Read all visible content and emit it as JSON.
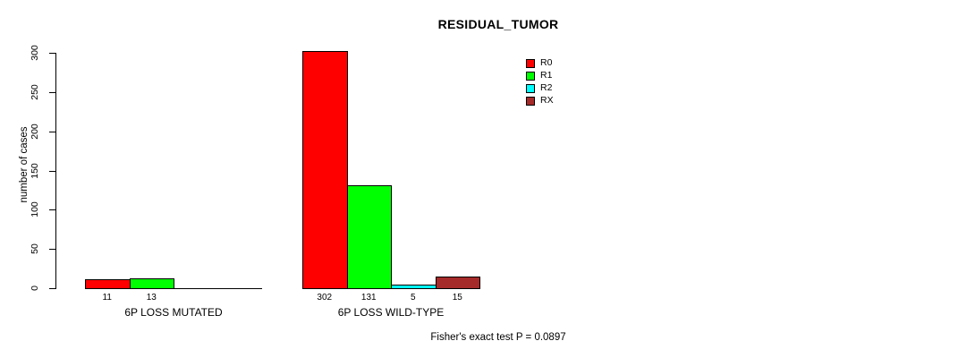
{
  "figure": {
    "background": "#FFFFFF",
    "axis_color": "#000000"
  },
  "chart_data": {
    "type": "bar",
    "title": "RESIDUAL_TUMOR",
    "ylabel": "number of cases",
    "xlabel": "",
    "ylim": [
      0,
      300
    ],
    "yticks": [
      0,
      50,
      100,
      150,
      200,
      250,
      300
    ],
    "grid": false,
    "categories": [
      "6P LOSS MUTATED",
      "6P LOSS WILD-TYPE"
    ],
    "series": [
      {
        "name": "R0",
        "color": "#FF0000",
        "values": [
          11,
          302
        ]
      },
      {
        "name": "R1",
        "color": "#00FF00",
        "values": [
          13,
          131
        ]
      },
      {
        "name": "R2",
        "color": "#00FFFF",
        "values": [
          0,
          5
        ]
      },
      {
        "name": "RX",
        "color": "#A52A2A",
        "values": [
          0,
          15
        ]
      }
    ],
    "bar_value_labels": [
      "11",
      "13",
      "302",
      "131",
      "5",
      "15"
    ],
    "legend": {
      "position": "top-right",
      "entries": [
        "R0",
        "R1",
        "R2",
        "RX"
      ]
    },
    "annotation": "Fisher's exact test P = 0.0897"
  }
}
